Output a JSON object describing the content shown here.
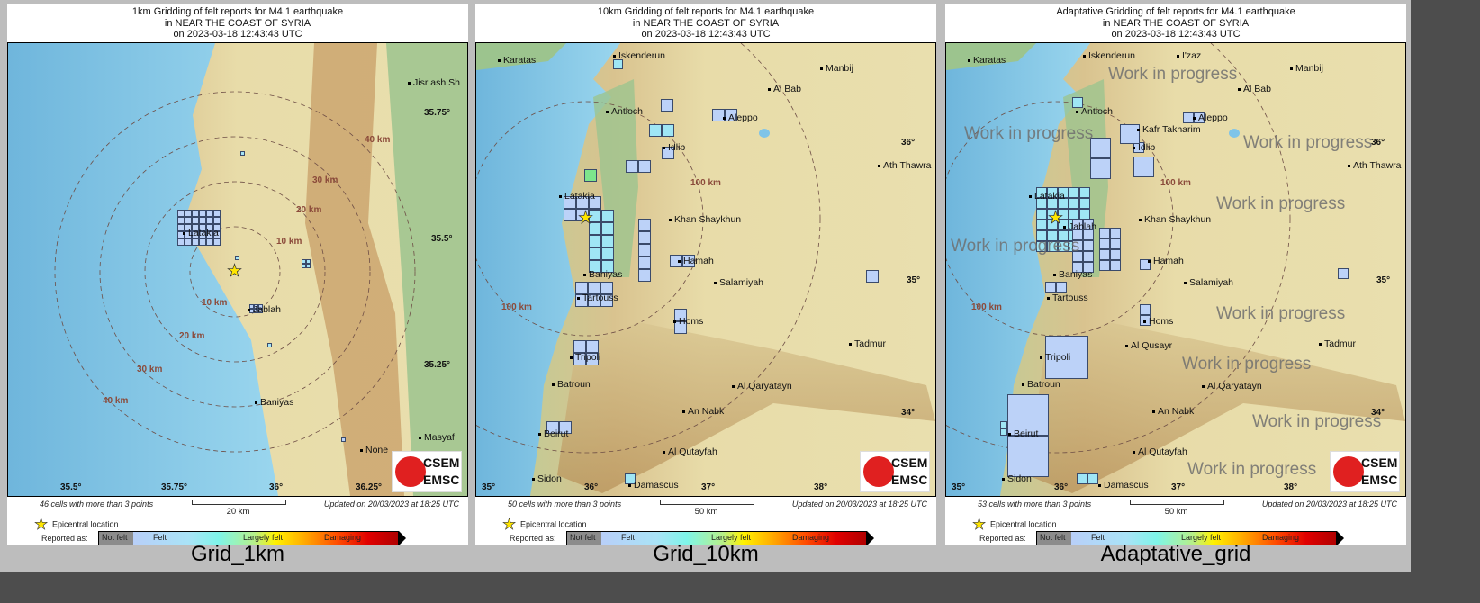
{
  "legend": {
    "epicentral": "Epicentral location",
    "reported_as": "Reported as:",
    "classes": [
      "Not felt",
      "Felt",
      "Largely felt",
      "Damaging"
    ],
    "updated": "Updated on 20/03/2023 at 18:25 UTC",
    "logo": [
      "CSEM",
      "EMSC"
    ]
  },
  "watermark": "Work in progress",
  "panels": [
    {
      "caption": "Grid_1km",
      "title": [
        "1km Gridding of felt reports for M4.1 earthquake",
        "in NEAR THE COAST OF SYRIA",
        "on  2023-03-18 12:43:43 UTC"
      ],
      "cells_text": "46 cells with more than 3 points",
      "scale": "20 km",
      "lon_ticks": [
        "35.5°",
        "35.75°",
        "36°",
        "36.25°"
      ],
      "lat_ticks": [
        "35.75°",
        "35.5°",
        "35.25°"
      ],
      "rings": [
        "10 km",
        "20 km",
        "30 km",
        "40 km",
        "10 km",
        "20 km",
        "30 km",
        "40 km"
      ],
      "cities": [
        "Jisr ash Sh",
        "Latakia",
        "Jablah",
        "Baniyas",
        "None",
        "Masyaf"
      ]
    },
    {
      "caption": "Grid_10km",
      "title": [
        "10km Gridding of felt reports for M4.1 earthquake",
        "in NEAR THE COAST OF SYRIA",
        "on  2023-03-18 12:43:43 UTC"
      ],
      "cells_text": "50 cells with more than 3 points",
      "scale": "50 km",
      "lon_ticks": [
        "35°",
        "36°",
        "37°",
        "38°"
      ],
      "lat_ticks": [
        "36°",
        "35°",
        "34°"
      ],
      "rings": [
        "100 km",
        "100 km"
      ],
      "cities": [
        "Karatas",
        "Iskenderun",
        "Manbij",
        "Al Bab",
        "Antioch",
        "Aleppo",
        "Idlib",
        "Ath Thawra",
        "Latakia",
        "Khan Shaykhun",
        "Baniyas",
        "Hamah",
        "Salamiyah",
        "Tartouss",
        "Homs",
        "Tadmur",
        "Tripoli",
        "Batroun",
        "Al Qaryatayn",
        "An Nabk",
        "Beirut",
        "Al Qutayfah",
        "Sidon",
        "Damascus"
      ]
    },
    {
      "caption": "Adaptative_grid",
      "title": [
        "Adaptative Gridding of felt reports for M4.1 earthquake",
        "in NEAR THE COAST OF SYRIA",
        "on  2023-03-18 12:43:43 UTC"
      ],
      "cells_text": "53 cells with more than 3 points",
      "scale": "50 km",
      "lon_ticks": [
        "35°",
        "36°",
        "37°",
        "38°"
      ],
      "lat_ticks": [
        "36°",
        "35°",
        "34°"
      ],
      "rings": [
        "100 km",
        "100 km"
      ],
      "cities": [
        "Karatas",
        "Iskenderun",
        "I'zaz",
        "Manbij",
        "Al Bab",
        "Antioch",
        "Aleppo",
        "Kafr Takharim",
        "Idlib",
        "Ath Thawra",
        "Latakia",
        "Jablah",
        "Khan Shaykhun",
        "Baniyas",
        "Hamah",
        "Salamiyah",
        "Tartouss",
        "Homs",
        "Tadmur",
        "Al Qusayr",
        "Tripoli",
        "Batroun",
        "Al Qaryatayn",
        "An Nabk",
        "Beirut",
        "Al Qutayfah",
        "Sidon",
        "Damascus"
      ]
    }
  ]
}
